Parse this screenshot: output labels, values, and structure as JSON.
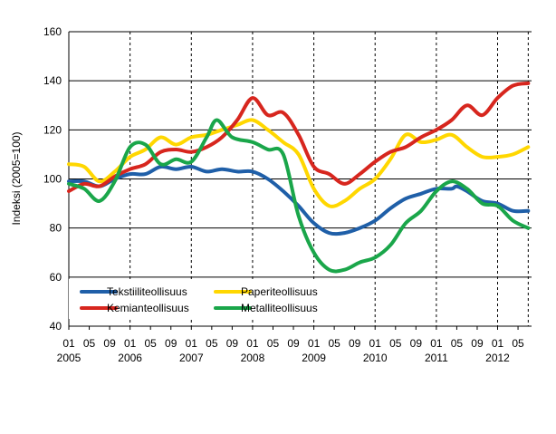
{
  "chart_data": {
    "type": "line",
    "title": "",
    "xlabel": "",
    "ylabel": "Indeksi (2005=100)",
    "ylim": [
      40,
      160
    ],
    "yticks": [
      40,
      60,
      80,
      100,
      120,
      140,
      160
    ],
    "grid": "horizontal solid, vertical dashed at year starts",
    "legend_position": "bottom-left inside plot",
    "x_start": "2005-01",
    "x_end": "2012-07",
    "month_tick_labels": [
      "01",
      "05",
      "09",
      "01",
      "05",
      "09",
      "01",
      "05",
      "09",
      "01",
      "05",
      "09",
      "01",
      "05",
      "09",
      "01",
      "05",
      "09",
      "01",
      "05",
      "09",
      "01",
      "05"
    ],
    "year_labels": [
      "2005",
      "2006",
      "2007",
      "2008",
      "2009",
      "2010",
      "2011",
      "2012"
    ],
    "series": [
      {
        "name": "Tekstiiliteollisuus",
        "color": "#1f5fa8",
        "points": [
          [
            "2005-01",
            99
          ],
          [
            "2005-04",
            99
          ],
          [
            "2005-07",
            97
          ],
          [
            "2005-10",
            100
          ],
          [
            "2006-01",
            102
          ],
          [
            "2006-04",
            102
          ],
          [
            "2006-07",
            105
          ],
          [
            "2006-10",
            104
          ],
          [
            "2007-01",
            105
          ],
          [
            "2007-04",
            103
          ],
          [
            "2007-07",
            104
          ],
          [
            "2007-10",
            103
          ],
          [
            "2008-01",
            103
          ],
          [
            "2008-04",
            100
          ],
          [
            "2008-07",
            95
          ],
          [
            "2008-10",
            89
          ],
          [
            "2009-01",
            82
          ],
          [
            "2009-04",
            78
          ],
          [
            "2009-07",
            78
          ],
          [
            "2009-10",
            80
          ],
          [
            "2010-01",
            83
          ],
          [
            "2010-04",
            88
          ],
          [
            "2010-07",
            92
          ],
          [
            "2010-10",
            94
          ],
          [
            "2011-01",
            96
          ],
          [
            "2011-04",
            96
          ],
          [
            "2011-05",
            97
          ],
          [
            "2011-07",
            95
          ],
          [
            "2011-10",
            91
          ],
          [
            "2012-01",
            90
          ],
          [
            "2012-04",
            87
          ],
          [
            "2012-07",
            87
          ]
        ]
      },
      {
        "name": "Paperiteollisuus",
        "color": "#ffd700",
        "points": [
          [
            "2005-01",
            106
          ],
          [
            "2005-04",
            105
          ],
          [
            "2005-07",
            99
          ],
          [
            "2005-10",
            103
          ],
          [
            "2006-01",
            109
          ],
          [
            "2006-04",
            112
          ],
          [
            "2006-07",
            117
          ],
          [
            "2006-10",
            114
          ],
          [
            "2007-01",
            117
          ],
          [
            "2007-04",
            118
          ],
          [
            "2007-07",
            120
          ],
          [
            "2007-10",
            122
          ],
          [
            "2008-01",
            124
          ],
          [
            "2008-04",
            120
          ],
          [
            "2008-07",
            115
          ],
          [
            "2008-10",
            110
          ],
          [
            "2009-01",
            96
          ],
          [
            "2009-04",
            89
          ],
          [
            "2009-07",
            91
          ],
          [
            "2009-10",
            96
          ],
          [
            "2010-01",
            100
          ],
          [
            "2010-04",
            108
          ],
          [
            "2010-07",
            118
          ],
          [
            "2010-10",
            115
          ],
          [
            "2011-01",
            116
          ],
          [
            "2011-04",
            118
          ],
          [
            "2011-07",
            113
          ],
          [
            "2011-10",
            109
          ],
          [
            "2012-01",
            109
          ],
          [
            "2012-04",
            110
          ],
          [
            "2012-07",
            113
          ]
        ]
      },
      {
        "name": "Kemianteollisuus",
        "color": "#d7261e",
        "points": [
          [
            "2005-01",
            95
          ],
          [
            "2005-04",
            98
          ],
          [
            "2005-07",
            97
          ],
          [
            "2005-10",
            101
          ],
          [
            "2006-01",
            104
          ],
          [
            "2006-04",
            106
          ],
          [
            "2006-07",
            111
          ],
          [
            "2006-10",
            112
          ],
          [
            "2007-01",
            111
          ],
          [
            "2007-04",
            113
          ],
          [
            "2007-07",
            117
          ],
          [
            "2007-10",
            124
          ],
          [
            "2008-01",
            133
          ],
          [
            "2008-04",
            126
          ],
          [
            "2008-07",
            127
          ],
          [
            "2008-10",
            118
          ],
          [
            "2009-01",
            105
          ],
          [
            "2009-04",
            102
          ],
          [
            "2009-07",
            98
          ],
          [
            "2009-10",
            102
          ],
          [
            "2010-01",
            107
          ],
          [
            "2010-04",
            111
          ],
          [
            "2010-07",
            113
          ],
          [
            "2010-10",
            117
          ],
          [
            "2011-01",
            120
          ],
          [
            "2011-04",
            124
          ],
          [
            "2011-07",
            130
          ],
          [
            "2011-10",
            126
          ],
          [
            "2012-01",
            133
          ],
          [
            "2012-04",
            138
          ],
          [
            "2012-07",
            139
          ]
        ]
      },
      {
        "name": "Metalliteollisuus",
        "color": "#1aa64a",
        "points": [
          [
            "2005-01",
            98
          ],
          [
            "2005-04",
            96
          ],
          [
            "2005-07",
            91
          ],
          [
            "2005-10",
            99
          ],
          [
            "2006-01",
            113
          ],
          [
            "2006-04",
            114
          ],
          [
            "2006-07",
            106
          ],
          [
            "2006-10",
            108
          ],
          [
            "2007-01",
            107
          ],
          [
            "2007-04",
            117
          ],
          [
            "2007-06",
            124
          ],
          [
            "2007-09",
            117
          ],
          [
            "2008-01",
            115
          ],
          [
            "2008-04",
            112
          ],
          [
            "2008-07",
            110
          ],
          [
            "2008-10",
            85
          ],
          [
            "2009-01",
            70
          ],
          [
            "2009-04",
            63
          ],
          [
            "2009-07",
            63
          ],
          [
            "2009-10",
            66
          ],
          [
            "2010-01",
            68
          ],
          [
            "2010-04",
            73
          ],
          [
            "2010-07",
            82
          ],
          [
            "2010-10",
            87
          ],
          [
            "2011-01",
            95
          ],
          [
            "2011-04",
            99
          ],
          [
            "2011-07",
            96
          ],
          [
            "2011-10",
            90
          ],
          [
            "2012-01",
            89
          ],
          [
            "2012-04",
            83
          ],
          [
            "2012-07",
            80
          ]
        ]
      }
    ]
  }
}
